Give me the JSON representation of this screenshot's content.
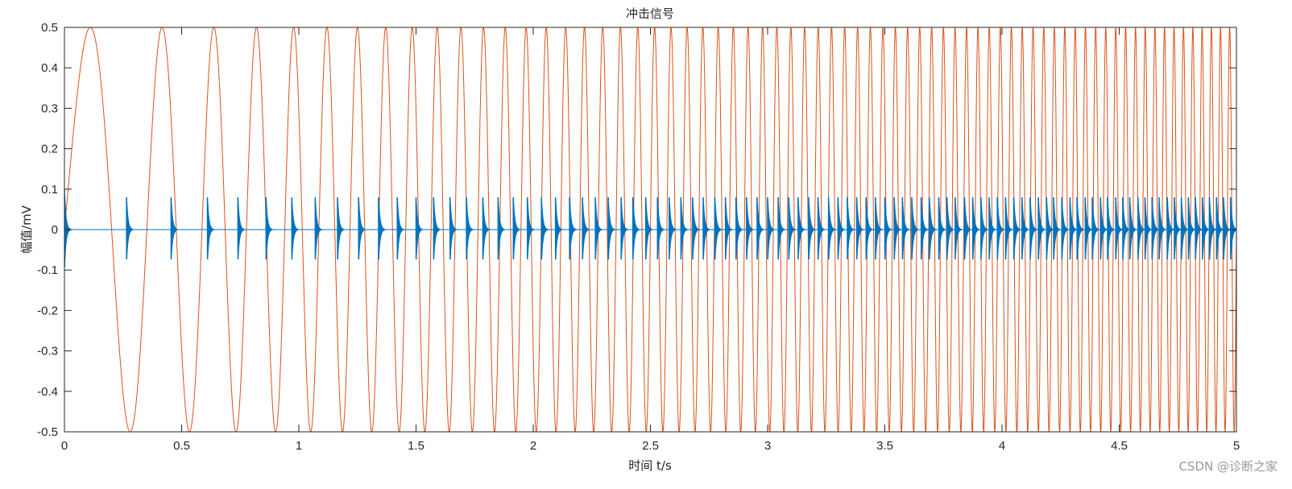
{
  "chart_data": {
    "type": "line",
    "title": "冲击信号",
    "xlabel": "时间 t/s",
    "ylabel": "幅值/mV",
    "xlim": [
      0,
      5
    ],
    "ylim": [
      -0.5,
      0.5
    ],
    "xticks": [
      0,
      0.5,
      1,
      1.5,
      2,
      2.5,
      3,
      3.5,
      4,
      4.5,
      5
    ],
    "xtick_labels": [
      "0",
      "0.5",
      "1",
      "1.5",
      "2",
      "2.5",
      "3",
      "3.5",
      "4",
      "4.5",
      "5"
    ],
    "yticks": [
      0.5,
      0.4,
      0.3,
      0.2,
      0.1,
      0,
      -0.1,
      -0.2,
      -0.3,
      -0.4,
      -0.5
    ],
    "ytick_labels": [
      "0.5",
      "0.4",
      "0.3",
      "0.2",
      "0.1",
      "0",
      "-0.1",
      "-0.2",
      "-0.3",
      "-0.4",
      "-0.5"
    ],
    "grid": false,
    "box": true,
    "series": [
      {
        "style": "chirp sinusoid, instantaneous frequency increasing linearly with time",
        "amplitude": 0.5,
        "initial_frequency_hz": 2,
        "frequency_slope_hz_per_s": 4.8,
        "color": "#D95319"
      },
      {
        "style": "decaying impulse bursts repeating at a chirped rate",
        "impulse_peak": 0.08,
        "first_impulse_peak": 0.1,
        "impulse_times": [
          0,
          0.265,
          0.455,
          0.61,
          0.74,
          0.86,
          0.97,
          1.07,
          1.165,
          1.255,
          1.34,
          1.42,
          1.5,
          1.575,
          1.645,
          1.715,
          1.785,
          1.85,
          1.915,
          1.975,
          2.035,
          2.095,
          2.155,
          2.21,
          2.265,
          2.32,
          2.375,
          2.425,
          2.48,
          2.53,
          2.58,
          2.63,
          2.68,
          2.725,
          2.775,
          2.82,
          2.865,
          2.91,
          2.955,
          3.0,
          3.045,
          3.09,
          3.13,
          3.175,
          3.215,
          3.26,
          3.3,
          3.34,
          3.38,
          3.42,
          3.46,
          3.5,
          3.54,
          3.575,
          3.615,
          3.655,
          3.69,
          3.73,
          3.765,
          3.8,
          3.84,
          3.875,
          3.91,
          3.945,
          3.98,
          4.015,
          4.05,
          4.085,
          4.12,
          4.155,
          4.19,
          4.22,
          4.255,
          4.29,
          4.32,
          4.355,
          4.385,
          4.42,
          4.45,
          4.485,
          4.515,
          4.545,
          4.58,
          4.61,
          4.64,
          4.67,
          4.705,
          4.735,
          4.765,
          4.795,
          4.825,
          4.855,
          4.885,
          4.915,
          4.945,
          4.975
        ],
        "color": "#0072BD"
      }
    ]
  },
  "watermark": "CSDN @诊断之家"
}
